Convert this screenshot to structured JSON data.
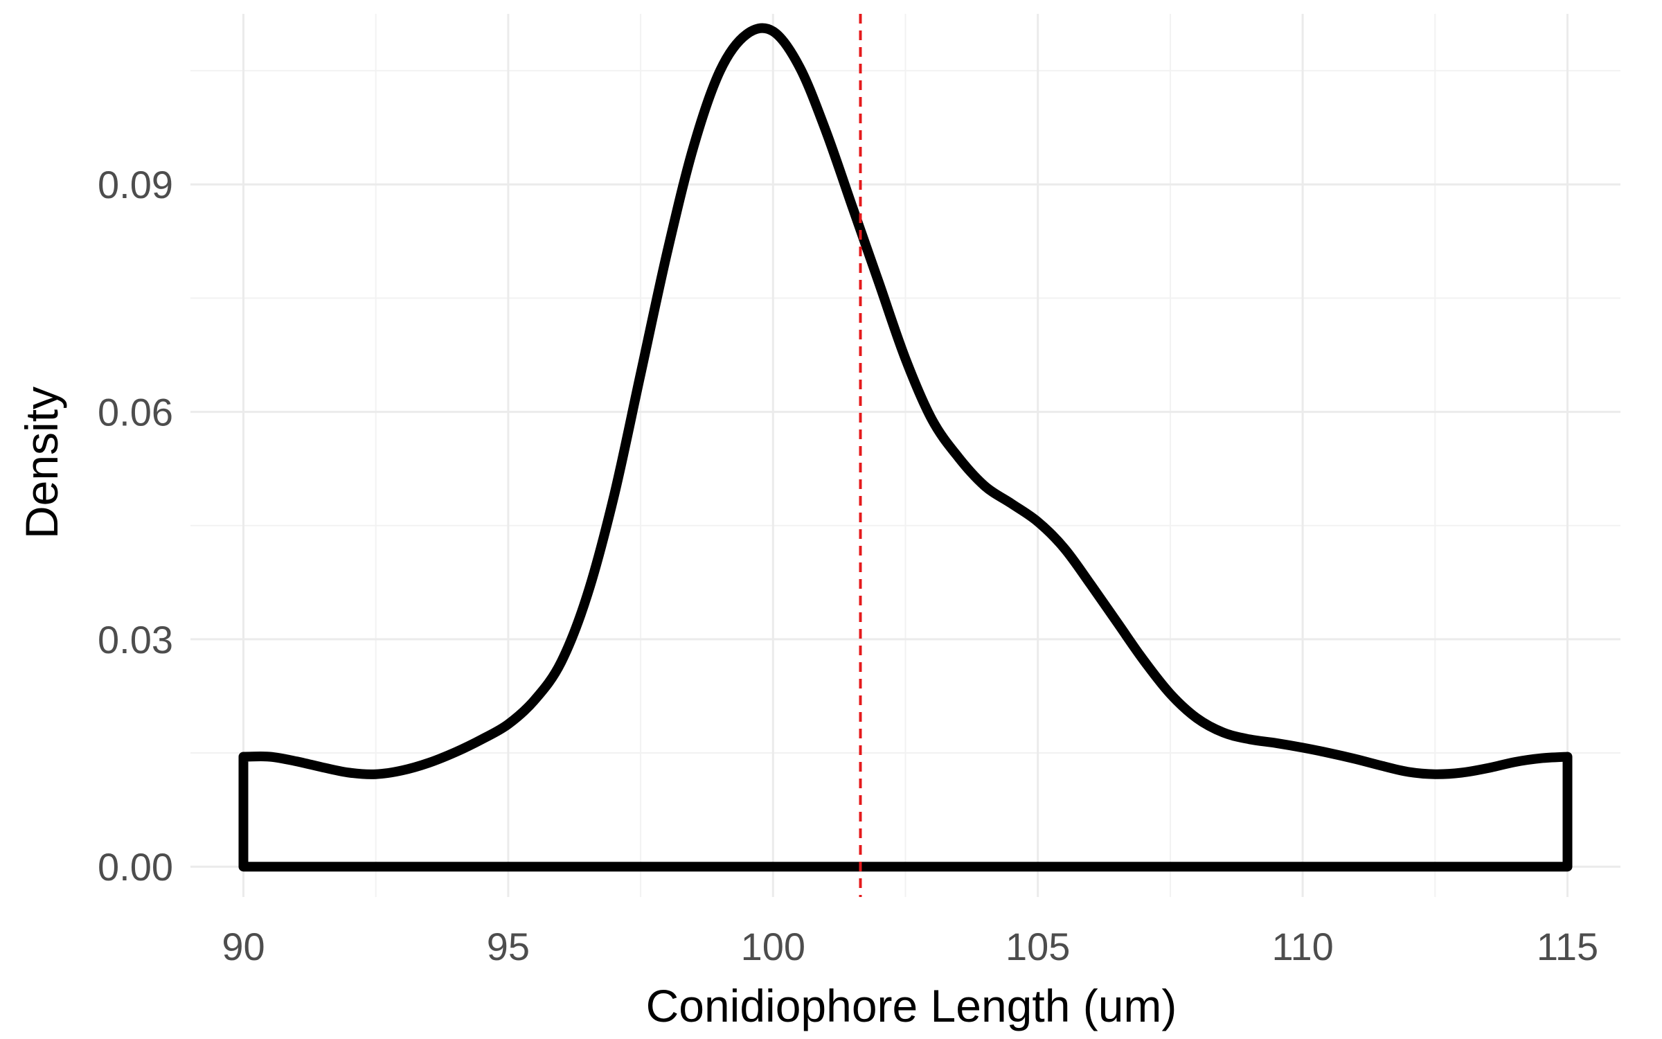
{
  "chart_data": {
    "type": "area",
    "xlabel": "Conidiophore Length (um)",
    "ylabel": "Density",
    "xlim": [
      89,
      116
    ],
    "ylim": [
      -0.004,
      0.1125
    ],
    "x_ticks": [
      90,
      95,
      100,
      105,
      110,
      115
    ],
    "x_tick_labels": [
      "90",
      "95",
      "100",
      "105",
      "110",
      "115"
    ],
    "y_ticks": [
      0.0,
      0.03,
      0.06,
      0.09
    ],
    "y_tick_labels": [
      "0.00",
      "0.03",
      "0.06",
      "0.09"
    ],
    "x_minor_ticks": [
      92.5,
      97.5,
      102.5,
      107.5,
      112.5
    ],
    "y_minor_ticks": [
      0.015,
      0.045,
      0.075,
      0.105
    ],
    "grid": true,
    "legend": "none",
    "density_color": "#000000",
    "reference_line": {
      "type": "vertical",
      "x": 101.65,
      "style": "dashed",
      "color": "#e41a1c"
    },
    "series": [
      {
        "x": [
          90,
          90.5,
          91,
          91.5,
          92,
          92.5,
          93,
          93.5,
          94,
          94.5,
          95,
          95.5,
          96,
          96.5,
          97,
          97.5,
          98,
          98.5,
          99,
          99.5,
          100,
          100.5,
          101,
          101.5,
          102,
          102.5,
          103,
          103.5,
          104,
          104.5,
          105,
          105.5,
          106,
          106.5,
          107,
          107.5,
          108,
          108.5,
          109,
          109.5,
          110,
          110.5,
          111,
          111.5,
          112,
          112.5,
          113,
          113.5,
          114,
          114.5,
          115
        ],
        "y": [
          0.0145,
          0.0145,
          0.0139,
          0.0131,
          0.0124,
          0.0122,
          0.0127,
          0.0137,
          0.0151,
          0.0168,
          0.0188,
          0.022,
          0.027,
          0.036,
          0.049,
          0.065,
          0.081,
          0.095,
          0.105,
          0.1098,
          0.1102,
          0.1055,
          0.097,
          0.087,
          0.077,
          0.067,
          0.059,
          0.054,
          0.0502,
          0.0479,
          0.0455,
          0.042,
          0.0372,
          0.0322,
          0.0272,
          0.0228,
          0.0196,
          0.0177,
          0.0168,
          0.0163,
          0.0157,
          0.015,
          0.0142,
          0.0133,
          0.0125,
          0.0122,
          0.0124,
          0.013,
          0.0138,
          0.0143,
          0.0145
        ]
      }
    ]
  }
}
